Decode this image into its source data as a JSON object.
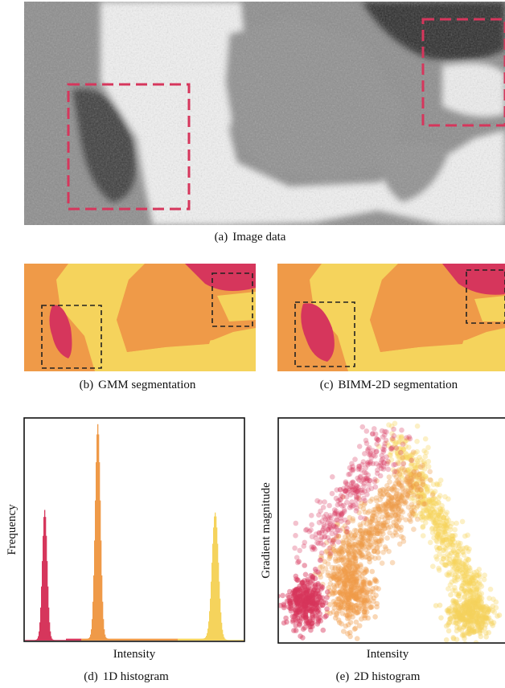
{
  "captions": {
    "a": {
      "label": "(a)",
      "text": "Image data"
    },
    "b": {
      "label": "(b)",
      "text": "GMM segmentation"
    },
    "c": {
      "label": "(c)",
      "text": "BIMM-2D segmentation"
    },
    "d": {
      "label": "(d)",
      "text": "1D histogram"
    },
    "e": {
      "label": "(e)",
      "text": "2D histogram"
    }
  },
  "colors": {
    "class_low": "#d6365c",
    "class_mid": "#ef9a48",
    "class_high": "#f5d35c",
    "roi_box_image": "#d6365c",
    "roi_box_seg": "#222222"
  },
  "chart_data": [
    {
      "type": "bar",
      "panel": "d",
      "title": "",
      "xlabel": "Intensity",
      "ylabel": "Frequency",
      "grid": false,
      "series": [
        {
          "name": "",
          "color": "#d6365c",
          "peak_bin": 24,
          "peak_value": 1.0,
          "width": 3.0
        },
        {
          "name": "",
          "color": "#ef9a48",
          "peak_bin": 90,
          "peak_value": 1.65,
          "width": 3.2
        },
        {
          "name": "",
          "color": "#f5d35c",
          "peak_bin": 236,
          "peak_value": 0.98,
          "width": 4.0
        }
      ]
    },
    {
      "type": "scatter",
      "panel": "e",
      "title": "",
      "xlabel": "Intensity",
      "ylabel": "Gradient magnitude",
      "grid": false
    }
  ]
}
